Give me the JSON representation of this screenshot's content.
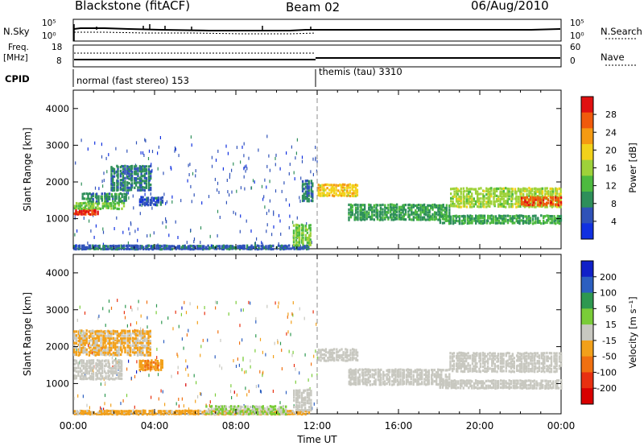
{
  "header": {
    "station": "Blackstone (fitACF)",
    "beam": "Beam 02",
    "date": "06/Aug/2010"
  },
  "strip_labels": {
    "nsky": "N.Sky",
    "nsearch": "N.Search",
    "freq": "Freq.",
    "freq_unit": "[MHz]",
    "nave": "Nave",
    "cpid": "CPID",
    "nsky_ticks": [
      "10^5",
      "10^0"
    ],
    "nsearch_ticks": [
      "10^5",
      "10^0"
    ],
    "freq_ticks": [
      "18",
      "8"
    ],
    "nave_ticks": [
      "60",
      "0"
    ]
  },
  "cpid_modes": [
    {
      "label": "normal (fast stereo) 153",
      "start_hour": 0,
      "end_hour": 12
    },
    {
      "label": "themis (tau) 3310",
      "start_hour": 12,
      "end_hour": 24
    }
  ],
  "colors": {
    "power_scale": [
      "#1030e0",
      "#2f52b8",
      "#2e8f5a",
      "#4dba3f",
      "#9ed23a",
      "#f2d21a",
      "#f59a12",
      "#f05a0c",
      "#e01010"
    ],
    "velocity_scale": [
      "#1020c8",
      "#2c5fc0",
      "#2e9850",
      "#7acc38",
      "#c8c8c0",
      "#f2a01a",
      "#f07010",
      "#e83010",
      "#d80000"
    ],
    "dashed_marker": "#a0a0a0"
  },
  "chart_data": [
    {
      "type": "heatmap",
      "title": "",
      "xlabel": "Time UT",
      "ylabel": "Slant Range [km]",
      "colorbar_label": "Power [dB]",
      "colorbar_ticks": [
        "28",
        "24",
        "20",
        "16",
        "12",
        "8",
        "4"
      ],
      "colorbar_range": [
        0,
        32
      ],
      "xlim": [
        0,
        24
      ],
      "ylim": [
        180,
        4500
      ],
      "yticks": [
        "1000",
        "2000",
        "3000",
        "4000"
      ],
      "xticks": [
        "00:00",
        "04:00",
        "08:00",
        "12:00",
        "16:00",
        "20:00",
        "00:00"
      ],
      "grid": false,
      "bands": [
        {
          "t0": 0.0,
          "t1": 1.2,
          "r0": 1150,
          "r1": 1300,
          "value": 29
        },
        {
          "t0": 0.0,
          "t1": 2.5,
          "r0": 1300,
          "r1": 1500,
          "value": 14
        },
        {
          "t0": 0.4,
          "t1": 2.6,
          "r0": 1500,
          "r1": 1750,
          "value": 9
        },
        {
          "t0": 1.8,
          "t1": 3.8,
          "r0": 1800,
          "r1": 2500,
          "value": 8
        },
        {
          "t0": 3.2,
          "t1": 4.4,
          "r0": 1400,
          "r1": 1650,
          "value": 5
        },
        {
          "t0": 0.0,
          "t1": 11.6,
          "r0": 200,
          "r1": 320,
          "value": 6
        },
        {
          "t0": 10.8,
          "t1": 11.7,
          "r0": 300,
          "r1": 900,
          "value": 14
        },
        {
          "t0": 11.2,
          "t1": 11.8,
          "r0": 1500,
          "r1": 2100,
          "value": 8
        },
        {
          "t0": 12.0,
          "t1": 14.0,
          "r0": 1650,
          "r1": 2000,
          "value": 20
        },
        {
          "t0": 13.5,
          "t1": 18.5,
          "r0": 1000,
          "r1": 1450,
          "value": 10
        },
        {
          "t0": 18.0,
          "t1": 24.0,
          "r0": 900,
          "r1": 1150,
          "value": 11
        },
        {
          "t0": 18.5,
          "t1": 24.0,
          "r0": 1350,
          "r1": 1900,
          "value": 16
        },
        {
          "t0": 22.0,
          "t1": 24.0,
          "r0": 1400,
          "r1": 1650,
          "value": 27
        }
      ],
      "dashed_line_hour": 12.0
    },
    {
      "type": "heatmap",
      "title": "",
      "xlabel": "Time UT",
      "ylabel": "Slant Range [km]",
      "colorbar_label": "Velocity [m s^-1]",
      "colorbar_ticks": [
        "200",
        "100",
        "50",
        "15",
        "-15",
        "-50",
        "-100",
        "-200"
      ],
      "colorbar_range": [
        -250,
        250
      ],
      "xlim": [
        0,
        24
      ],
      "ylim": [
        180,
        4500
      ],
      "yticks": [
        "1000",
        "2000",
        "3000",
        "4000"
      ],
      "xticks": [
        "00:00",
        "04:00",
        "08:00",
        "12:00",
        "16:00",
        "20:00",
        "00:00"
      ],
      "grid": false,
      "bands": [
        {
          "t0": 0.0,
          "t1": 2.4,
          "r0": 1150,
          "r1": 1700,
          "value": 0
        },
        {
          "t0": 0.0,
          "t1": 3.8,
          "r0": 1800,
          "r1": 2500,
          "value": -30
        },
        {
          "t0": 3.2,
          "t1": 4.4,
          "r0": 1400,
          "r1": 1700,
          "value": -80
        },
        {
          "t0": 0.0,
          "t1": 11.6,
          "r0": 200,
          "r1": 320,
          "value": -40
        },
        {
          "t0": 6.5,
          "t1": 10.5,
          "r0": 200,
          "r1": 450,
          "value": 30
        },
        {
          "t0": 10.8,
          "t1": 11.7,
          "r0": 300,
          "r1": 900,
          "value": 0
        },
        {
          "t0": 12.0,
          "t1": 14.0,
          "r0": 1650,
          "r1": 2000,
          "value": 0
        },
        {
          "t0": 13.5,
          "t1": 18.5,
          "r0": 1000,
          "r1": 1450,
          "value": 0
        },
        {
          "t0": 18.0,
          "t1": 24.0,
          "r0": 900,
          "r1": 1150,
          "value": 0
        },
        {
          "t0": 18.5,
          "t1": 24.0,
          "r0": 1350,
          "r1": 1900,
          "value": 0
        }
      ],
      "dashed_line_hour": 12.0
    }
  ]
}
